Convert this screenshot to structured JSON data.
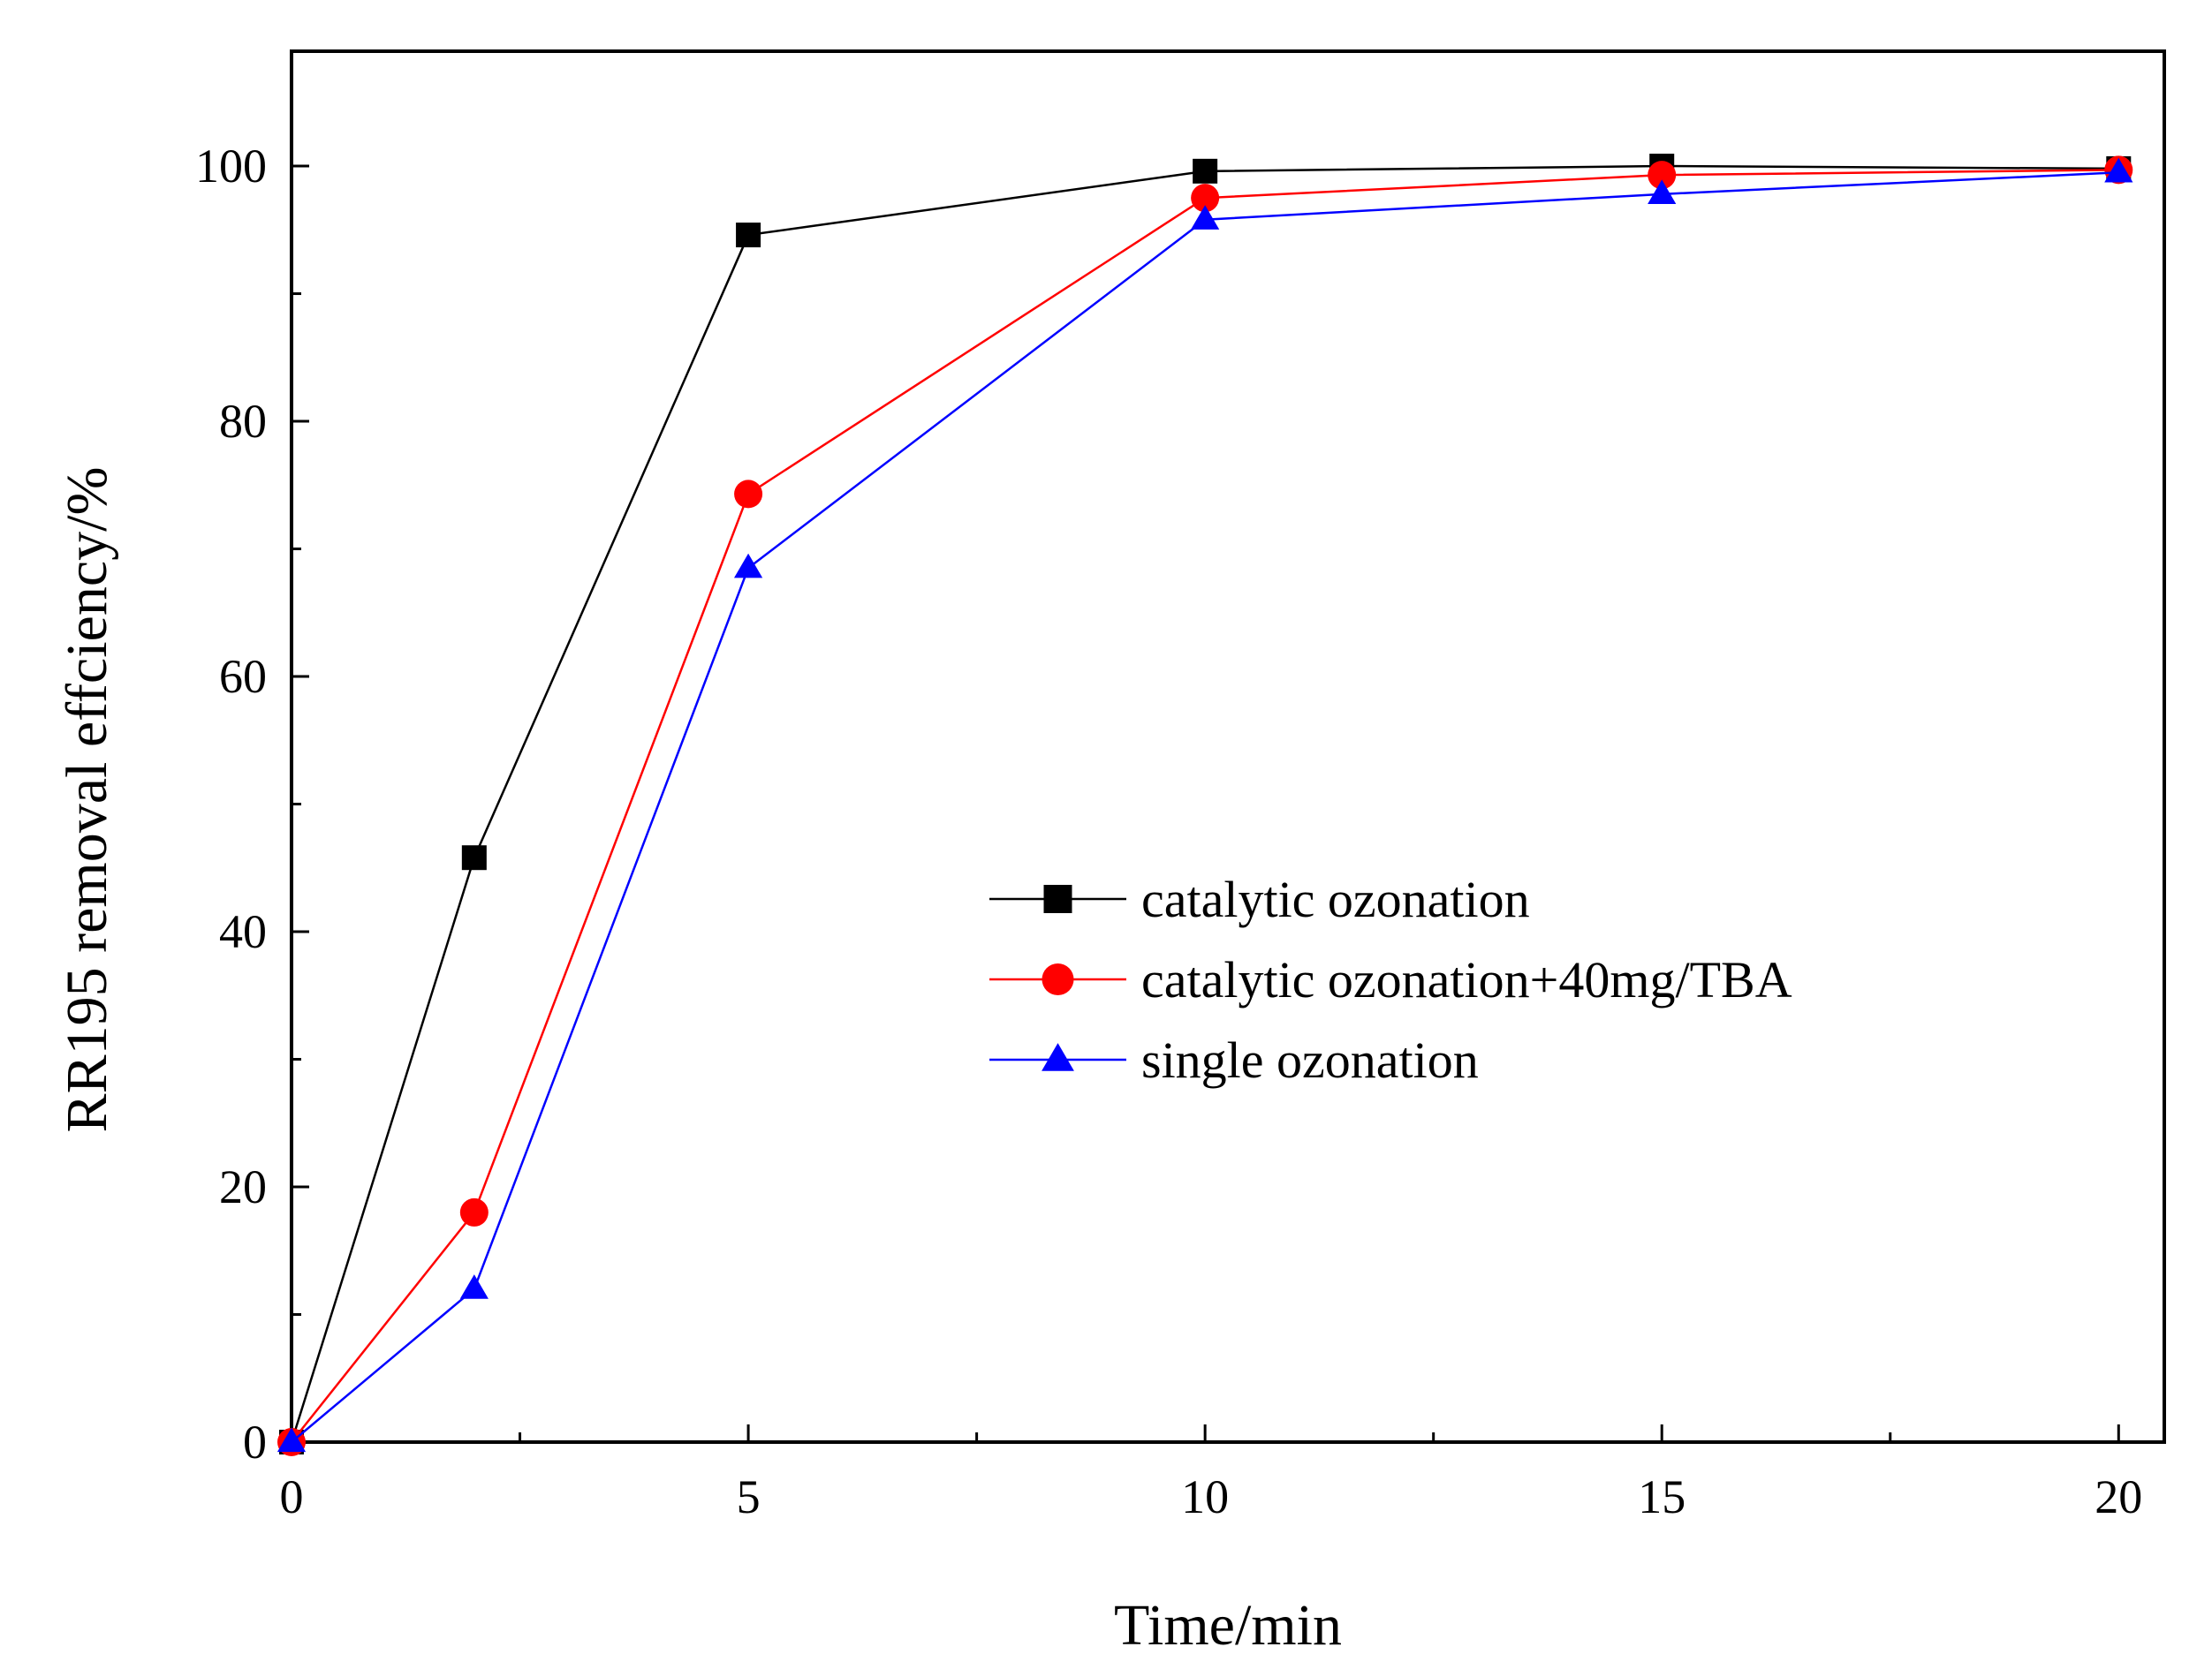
{
  "chart_data": {
    "type": "line",
    "title": "",
    "xlabel": "Time/min",
    "ylabel": "RR195 removal effciency/%",
    "xlim": [
      0,
      20.5
    ],
    "ylim": [
      0,
      109
    ],
    "x_ticks": [
      0,
      5,
      10,
      15,
      20
    ],
    "x_minor_ticks": [
      2.5,
      7.5,
      12.5,
      17.5
    ],
    "y_ticks": [
      0,
      20,
      40,
      60,
      80,
      100
    ],
    "y_minor_ticks": [
      10,
      30,
      50,
      70,
      90
    ],
    "grid": false,
    "legend_position": "center-right",
    "series": [
      {
        "name": "catalytic ozonation",
        "color": "#000000",
        "marker": "square",
        "x": [
          0,
          2,
          5,
          10,
          15,
          20
        ],
        "y": [
          0,
          45.8,
          94.6,
          99.6,
          100,
          99.8
        ]
      },
      {
        "name": "catalytic ozonation+40mg/TBA",
        "color": "#ff0000",
        "marker": "circle",
        "x": [
          0,
          2,
          5,
          10,
          15,
          20
        ],
        "y": [
          0,
          18,
          74.3,
          97.5,
          99.3,
          99.7
        ]
      },
      {
        "name": "single ozonation",
        "color": "#0000ff",
        "marker": "triangle",
        "x": [
          0,
          2,
          5,
          10,
          15,
          20
        ],
        "y": [
          0,
          12,
          68.5,
          95.8,
          97.8,
          99.5
        ]
      }
    ]
  }
}
